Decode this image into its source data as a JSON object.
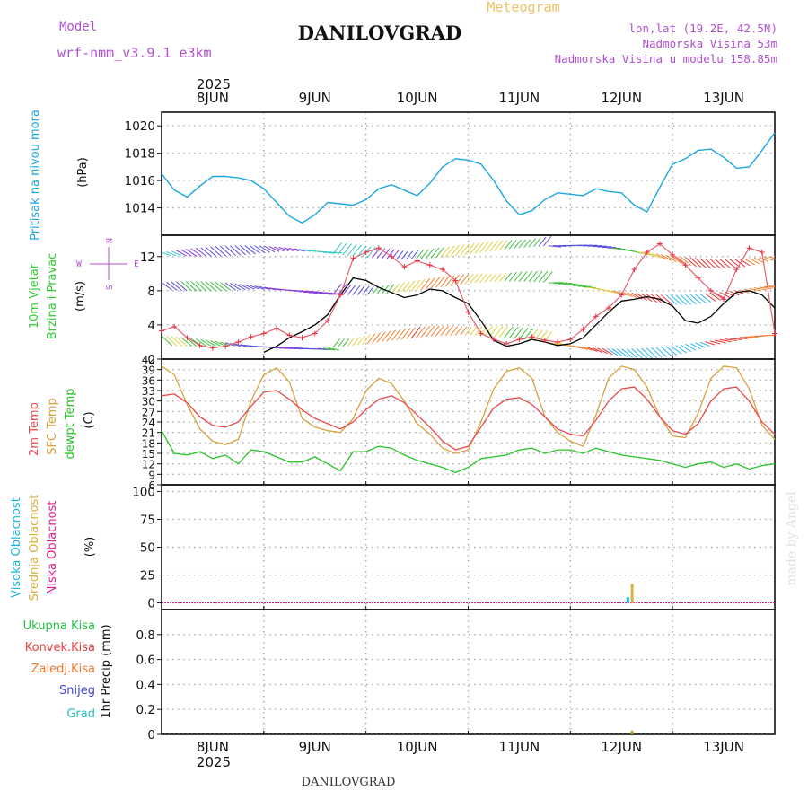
{
  "header": {
    "meteogram": "Meteogram",
    "station": "DANILOVGRAD",
    "model_label": "Model",
    "model_name": "wrf-nmm_v3.9.1  e3km",
    "lonlat": "lon,lat (19.2E, 42.5N)",
    "elevation": "Nadmorska Visina 53m",
    "model_elevation": "Nadmorska Visina u modelu 158.85m",
    "year_top": "2025",
    "year_bottom": "2025",
    "footer_station": "DANILOVGRAD",
    "credit": "made by Angel"
  },
  "colors": {
    "pressure": "#1ba6e0",
    "wind_label": "#2ecc30",
    "temp2m": "#e8484a",
    "sfc": "#d9a23f",
    "dewpt": "#28c428",
    "cloud_high": "#18b4e0",
    "cloud_mid": "#d9b040",
    "cloud_low": "#e0208a",
    "rain_total": "#20c040",
    "rain_conv": "#e83c3c",
    "freezing": "#f07830",
    "snow": "#4040e0",
    "hail": "#20c0c0",
    "purple": "#b050d0",
    "header_orange": "#f0c060",
    "wind_dir": "#b050d0"
  },
  "chart_data": {
    "x_axis": {
      "type": "time",
      "start_hour": 0,
      "end_hour": 144,
      "day_labels": [
        "8JUN",
        "9JUN",
        "10JUN",
        "11JUN",
        "12JUN",
        "13JUN"
      ]
    },
    "panels": [
      {
        "id": "pressure",
        "type": "line",
        "ylabel": "Pritisak na nivou mora",
        "yunit": "(hPa)",
        "ylim": [
          1012,
          1021
        ],
        "yticks": [
          "1014",
          "1016",
          "1018",
          "1020"
        ],
        "series": [
          {
            "name": "sea level pressure",
            "x": [
              0,
              3,
              6,
              9,
              12,
              15,
              18,
              21,
              24,
              27,
              30,
              33,
              36,
              39,
              42,
              45,
              48,
              51,
              54,
              57,
              60,
              63,
              66,
              69,
              72,
              75,
              78,
              81,
              84,
              87,
              90,
              93,
              96,
              99,
              102,
              105,
              108,
              111,
              114,
              117,
              120,
              123,
              126,
              129,
              132,
              135,
              138,
              141,
              144
            ],
            "values": [
              1016.5,
              1015.3,
              1014.8,
              1015.6,
              1016.3,
              1016.3,
              1016.2,
              1016.0,
              1015.4,
              1014.4,
              1013.4,
              1012.9,
              1013.5,
              1014.4,
              1014.3,
              1014.2,
              1014.6,
              1015.4,
              1015.7,
              1015.3,
              1014.9,
              1015.8,
              1017.0,
              1017.6,
              1017.5,
              1017.2,
              1016.0,
              1014.5,
              1013.5,
              1013.8,
              1014.6,
              1015.1,
              1015.0,
              1014.9,
              1015.4,
              1015.2,
              1015.1,
              1014.2,
              1013.7,
              1015.5,
              1017.2,
              1017.6,
              1018.2,
              1018.3,
              1017.7,
              1016.9,
              1017.0,
              1018.2,
              1019.5
            ]
          }
        ]
      },
      {
        "id": "wind",
        "type": "line",
        "ylabel_lines": [
          "10m Vjetar",
          "Brzina i Pravac"
        ],
        "yunit": "(m/s)",
        "direction_legend": {
          "n": "N",
          "s": "S",
          "e": "E",
          "w": "W"
        },
        "ylim": [
          0,
          14.5
        ],
        "yticks": [
          "0",
          "4",
          "8",
          "12"
        ],
        "series": [
          {
            "name": "wind speed",
            "x": [
              24,
              27,
              30,
              33,
              36,
              39,
              42,
              45,
              48,
              51,
              54,
              57,
              60,
              63,
              66,
              69,
              72,
              75,
              78,
              81,
              84,
              87,
              90,
              93,
              96,
              99,
              102,
              105,
              108,
              111,
              114,
              117,
              120,
              123,
              126,
              129,
              132,
              135,
              138,
              141,
              144
            ],
            "values": [
              0.8,
              1.5,
              2.5,
              3.2,
              4.0,
              5.2,
              7.5,
              9.5,
              9.2,
              8.4,
              7.8,
              7.2,
              7.5,
              8.2,
              8.0,
              7.2,
              6.5,
              4.5,
              2.2,
              1.5,
              1.8,
              2.3,
              2.0,
              1.6,
              1.8,
              2.5,
              4.0,
              5.5,
              6.8,
              7.0,
              7.3,
              7.0,
              6.2,
              4.5,
              4.2,
              5.0,
              6.5,
              7.8,
              8.0,
              7.5,
              6.0
            ]
          },
          {
            "name": "gust",
            "x": [
              0,
              3,
              6,
              9,
              12,
              15,
              18,
              21,
              24,
              27,
              30,
              33,
              36,
              39,
              42,
              45,
              48,
              51,
              54,
              57,
              60,
              63,
              66,
              69,
              72,
              75,
              78,
              81,
              84,
              87,
              90,
              93,
              96,
              99,
              102,
              105,
              108,
              111,
              114,
              117,
              120,
              123,
              126,
              129,
              132,
              135,
              138,
              141,
              144
            ],
            "values": [
              3.3,
              3.8,
              2.5,
              1.6,
              1.3,
              1.5,
              2.0,
              2.6,
              3.0,
              3.6,
              2.8,
              2.5,
              3.0,
              4.5,
              7.5,
              11.8,
              12.5,
              13.0,
              12.0,
              10.8,
              11.5,
              11.0,
              10.5,
              9.2,
              5.5,
              3.0,
              2.3,
              1.8,
              2.3,
              2.6,
              2.2,
              2.0,
              2.3,
              3.5,
              5.0,
              6.0,
              7.5,
              10.5,
              12.5,
              13.5,
              12.2,
              11.0,
              9.5,
              8.0,
              7.0,
              10.5,
              13.0,
              12.5,
              3.0
            ]
          }
        ]
      },
      {
        "id": "temperature",
        "type": "line",
        "ylabels": [
          "2m Temp",
          "SFC Temp",
          "dewpt Temp"
        ],
        "yunit": "(C)",
        "ylim": [
          6,
          42
        ],
        "yticks": [
          "6",
          "9",
          "12",
          "15",
          "18",
          "21",
          "24",
          "27",
          "30",
          "33",
          "36",
          "39",
          "42"
        ],
        "series": [
          {
            "name": "2m Temp",
            "x": [
              0,
              3,
              6,
              9,
              12,
              15,
              18,
              21,
              24,
              27,
              30,
              33,
              36,
              39,
              42,
              45,
              48,
              51,
              54,
              57,
              60,
              63,
              66,
              69,
              72,
              75,
              78,
              81,
              84,
              87,
              90,
              93,
              96,
              99,
              102,
              105,
              108,
              111,
              114,
              117,
              120,
              123,
              126,
              129,
              132,
              135,
              138,
              141,
              144
            ],
            "values": [
              31.5,
              32.0,
              29.5,
              25.5,
              23.0,
              22.5,
              24.0,
              28.5,
              32.5,
              33.0,
              30.5,
              27.5,
              25.0,
              23.5,
              22.0,
              24.0,
              27.5,
              30.5,
              31.5,
              29.5,
              26.0,
              22.5,
              18.5,
              16.0,
              17.0,
              22.5,
              28.0,
              30.5,
              31.0,
              29.0,
              25.5,
              22.0,
              20.5,
              20.0,
              24.5,
              30.0,
              33.5,
              34.0,
              30.5,
              25.5,
              21.5,
              20.5,
              23.5,
              30.0,
              33.5,
              34.0,
              30.0,
              24.0,
              20.5
            ]
          },
          {
            "name": "SFC Temp",
            "x": [
              0,
              3,
              6,
              9,
              12,
              15,
              18,
              21,
              24,
              27,
              30,
              33,
              36,
              39,
              42,
              45,
              48,
              51,
              54,
              57,
              60,
              63,
              66,
              69,
              72,
              75,
              78,
              81,
              84,
              87,
              90,
              93,
              96,
              99,
              102,
              105,
              108,
              111,
              114,
              117,
              120,
              123,
              126,
              129,
              132,
              135,
              138,
              141,
              144
            ],
            "values": [
              40.0,
              37.5,
              29.0,
              22.0,
              18.5,
              17.5,
              19.0,
              30.0,
              37.5,
              39.5,
              35.5,
              25.0,
              22.5,
              21.5,
              21.0,
              25.0,
              33.0,
              36.5,
              35.0,
              30.0,
              23.5,
              20.5,
              16.5,
              15.0,
              16.0,
              24.0,
              33.5,
              38.5,
              39.5,
              36.5,
              25.5,
              21.0,
              18.5,
              17.0,
              26.0,
              36.5,
              40.0,
              39.0,
              34.0,
              25.5,
              20.0,
              19.5,
              26.5,
              36.5,
              40.0,
              39.5,
              33.5,
              23.0,
              19.0
            ]
          },
          {
            "name": "dewpt Temp",
            "x": [
              0,
              3,
              6,
              9,
              12,
              15,
              18,
              21,
              24,
              27,
              30,
              33,
              36,
              39,
              42,
              45,
              48,
              51,
              54,
              57,
              60,
              63,
              66,
              69,
              72,
              75,
              78,
              81,
              84,
              87,
              90,
              93,
              96,
              99,
              102,
              105,
              108,
              111,
              114,
              117,
              120,
              123,
              126,
              129,
              132,
              135,
              138,
              141,
              144
            ],
            "values": [
              21.5,
              15.0,
              14.5,
              15.5,
              13.5,
              14.5,
              12.0,
              16.0,
              15.5,
              14.0,
              12.5,
              12.5,
              14.0,
              12.0,
              10.0,
              15.5,
              15.5,
              17.0,
              16.5,
              14.5,
              13.0,
              12.0,
              11.0,
              9.5,
              11.0,
              13.5,
              14.0,
              14.5,
              16.0,
              16.5,
              15.0,
              16.0,
              16.0,
              15.0,
              16.5,
              15.5,
              14.5,
              14.0,
              13.5,
              13.0,
              12.0,
              11.0,
              12.0,
              12.5,
              11.0,
              12.0,
              10.5,
              11.5,
              12.0
            ]
          }
        ]
      },
      {
        "id": "clouds",
        "type": "bar",
        "ylabels": [
          "Visoka Oblacnost",
          "Srednja Oblacnost",
          "Niska Oblacnost"
        ],
        "yunit": "(%)",
        "ylim": [
          -6,
          106
        ],
        "yticks": [
          "0",
          "25",
          "50",
          "75",
          "100"
        ],
        "series": [
          {
            "name": "Srednja Oblacnost",
            "x": [
              110.5
            ],
            "values": [
              17
            ]
          },
          {
            "name": "Visoka Oblacnost",
            "x": [
              109.5
            ],
            "values": [
              5
            ]
          }
        ]
      },
      {
        "id": "precip",
        "type": "bar",
        "ylabels": [
          "Ukupna  Kisa",
          "Konvek.Kisa",
          "Zaledj.Kisa",
          "Snijeg",
          "Grad"
        ],
        "yunit": "1hr Precip (mm)",
        "ylim": [
          0,
          1.0
        ],
        "yticks": [
          "0",
          "0.2",
          "0.4",
          "0.6",
          "0.8"
        ],
        "series": [
          {
            "name": "Zaledj.Kisa",
            "x": [
              110.5
            ],
            "values": [
              0.03
            ]
          }
        ]
      }
    ]
  }
}
